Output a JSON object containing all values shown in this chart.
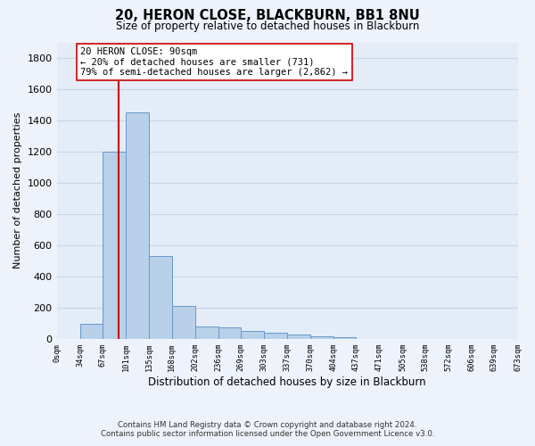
{
  "title": "20, HERON CLOSE, BLACKBURN, BB1 8NU",
  "subtitle": "Size of property relative to detached houses in Blackburn",
  "xlabel": "Distribution of detached houses by size in Blackburn",
  "ylabel": "Number of detached properties",
  "footer_line1": "Contains HM Land Registry data © Crown copyright and database right 2024.",
  "footer_line2": "Contains public sector information licensed under the Open Government Licence v3.0.",
  "bar_color": "#b8d0e8",
  "bar_edge_color": "#6699cc",
  "grid_color": "#c8d4e8",
  "vline_color": "#cc0000",
  "vline_x": 90,
  "annotation_text": "20 HERON CLOSE: 90sqm\n← 20% of detached houses are smaller (731)\n79% of semi-detached houses are larger (2,862) →",
  "annotation_box_color": "#ffffff",
  "annotation_box_edge": "#cc0000",
  "bin_edges": [
    0,
    34,
    67,
    101,
    135,
    168,
    202,
    236,
    269,
    303,
    337,
    370,
    404,
    437,
    471,
    505,
    538,
    572,
    606,
    639,
    673
  ],
  "bin_labels": [
    "0sqm",
    "34sqm",
    "67sqm",
    "101sqm",
    "135sqm",
    "168sqm",
    "202sqm",
    "236sqm",
    "269sqm",
    "303sqm",
    "337sqm",
    "370sqm",
    "404sqm",
    "437sqm",
    "471sqm",
    "505sqm",
    "538sqm",
    "572sqm",
    "606sqm",
    "639sqm",
    "673sqm"
  ],
  "counts": [
    0,
    100,
    1200,
    1450,
    530,
    210,
    80,
    75,
    50,
    40,
    30,
    20,
    10,
    3,
    0,
    0,
    0,
    0,
    0,
    0
  ],
  "ylim": [
    0,
    1900
  ],
  "yticks": [
    0,
    200,
    400,
    600,
    800,
    1000,
    1200,
    1400,
    1600,
    1800
  ],
  "background_color": "#eef2fa",
  "plot_bg_color": "#e4ecf7"
}
